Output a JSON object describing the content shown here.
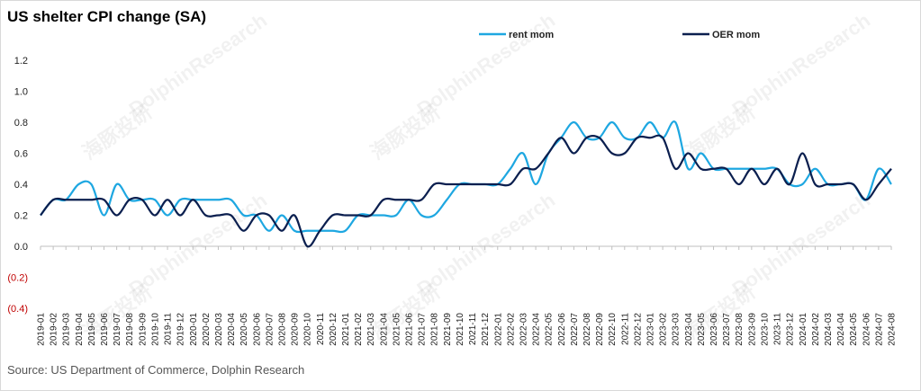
{
  "chart_data": {
    "type": "line",
    "title": "US shelter CPI change   (SA)",
    "source": "Source: US Department of Commerce,  Dolphin Research",
    "watermark": "DolphinResearch",
    "watermark_cn": "海豚投研",
    "categories": [
      "2019-01",
      "2019-02",
      "2019-03",
      "2019-04",
      "2019-05",
      "2019-06",
      "2019-07",
      "2019-08",
      "2019-09",
      "2019-10",
      "2019-11",
      "2019-12",
      "2020-01",
      "2020-02",
      "2020-03",
      "2020-04",
      "2020-05",
      "2020-06",
      "2020-07",
      "2020-08",
      "2020-09",
      "2020-10",
      "2020-11",
      "2020-12",
      "2021-01",
      "2021-02",
      "2021-03",
      "2021-04",
      "2021-05",
      "2021-06",
      "2021-07",
      "2021-08",
      "2021-09",
      "2021-10",
      "2021-11",
      "2021-12",
      "2022-01",
      "2022-02",
      "2022-03",
      "2022-04",
      "2022-05",
      "2022-06",
      "2022-07",
      "2022-08",
      "2022-09",
      "2022-10",
      "2022-11",
      "2022-12",
      "2023-01",
      "2023-02",
      "2023-03",
      "2023-04",
      "2023-05",
      "2023-06",
      "2023-07",
      "2023-08",
      "2023-09",
      "2023-10",
      "2023-11",
      "2023-12",
      "2024-01",
      "2024-02",
      "2024-03",
      "2024-04",
      "2024-05",
      "2024-06",
      "2024-07",
      "2024-08"
    ],
    "series": [
      {
        "name": "rent mom",
        "color": "#1ea7e1",
        "values": [
          0.2,
          0.3,
          0.3,
          0.4,
          0.4,
          0.2,
          0.4,
          0.3,
          0.3,
          0.3,
          0.2,
          0.3,
          0.3,
          0.3,
          0.3,
          0.3,
          0.2,
          0.2,
          0.1,
          0.2,
          0.1,
          0.1,
          0.1,
          0.1,
          0.1,
          0.2,
          0.2,
          0.2,
          0.2,
          0.3,
          0.2,
          0.2,
          0.3,
          0.4,
          0.4,
          0.4,
          0.4,
          0.5,
          0.6,
          0.4,
          0.6,
          0.7,
          0.8,
          0.7,
          0.7,
          0.8,
          0.7,
          0.7,
          0.8,
          0.7,
          0.8,
          0.5,
          0.6,
          0.5,
          0.5,
          0.5,
          0.5,
          0.5,
          0.5,
          0.4,
          0.4,
          0.5,
          0.4,
          0.4,
          0.4,
          0.3,
          0.5,
          0.4
        ]
      },
      {
        "name": "OER mom",
        "color": "#0b1f4f",
        "values": [
          0.2,
          0.3,
          0.3,
          0.3,
          0.3,
          0.3,
          0.2,
          0.3,
          0.3,
          0.2,
          0.3,
          0.2,
          0.3,
          0.2,
          0.2,
          0.2,
          0.1,
          0.2,
          0.2,
          0.1,
          0.2,
          0.0,
          0.1,
          0.2,
          0.2,
          0.2,
          0.2,
          0.3,
          0.3,
          0.3,
          0.3,
          0.4,
          0.4,
          0.4,
          0.4,
          0.4,
          0.4,
          0.4,
          0.5,
          0.5,
          0.6,
          0.7,
          0.6,
          0.7,
          0.7,
          0.6,
          0.6,
          0.7,
          0.7,
          0.7,
          0.5,
          0.6,
          0.5,
          0.5,
          0.5,
          0.4,
          0.5,
          0.4,
          0.5,
          0.4,
          0.6,
          0.4,
          0.4,
          0.4,
          0.4,
          0.3,
          0.4,
          0.5
        ]
      }
    ],
    "ylim": [
      -0.4,
      1.2
    ],
    "yticks": [
      {
        "value": -0.4,
        "label": "(0.4)"
      },
      {
        "value": -0.2,
        "label": "(0.2)"
      },
      {
        "value": 0,
        "label": "0.0"
      },
      0.2,
      0.4,
      0.6,
      0.8,
      {
        "value": 1,
        "label": "1.0"
      },
      1.2
    ],
    "negative_tick_color": "#c00000",
    "smooth": true
  }
}
